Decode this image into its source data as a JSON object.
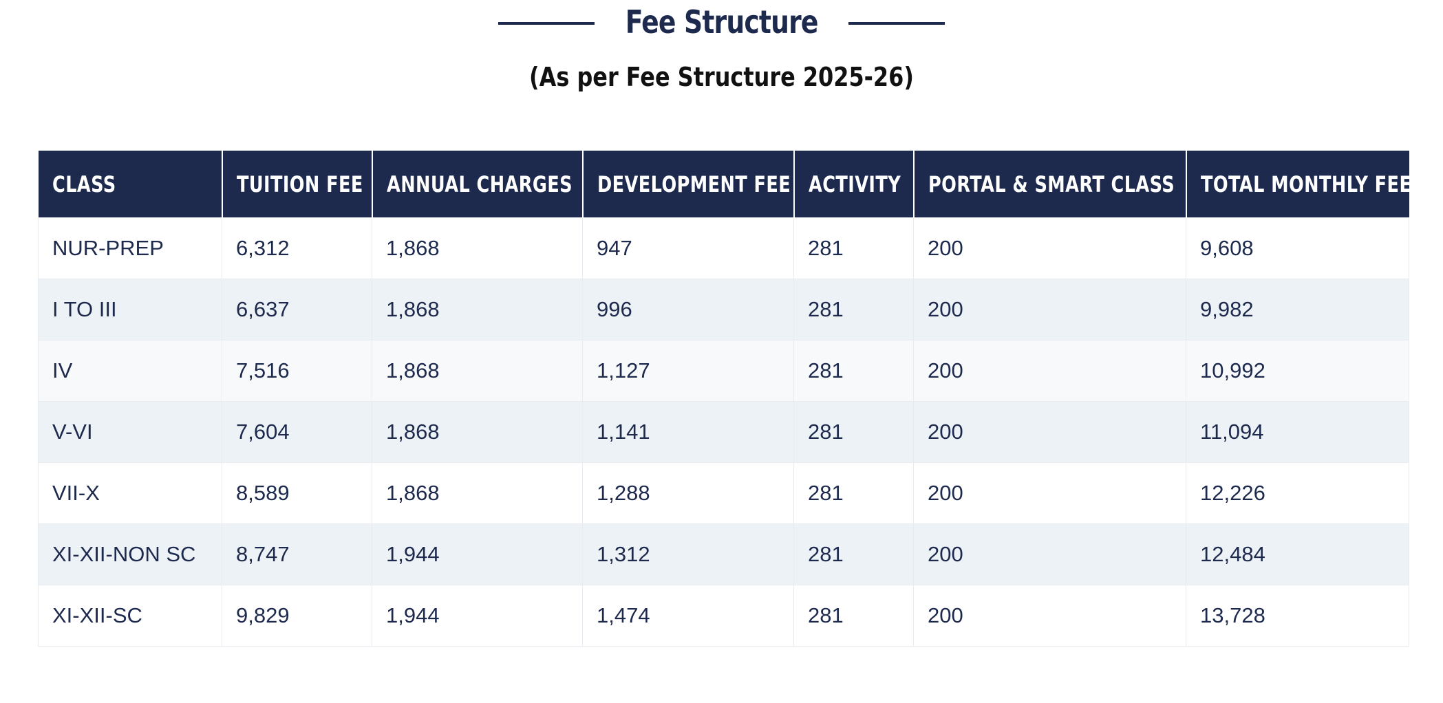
{
  "header": {
    "title": "Fee Structure",
    "subtitle": "(As per Fee Structure 2025-26)"
  },
  "colors": {
    "navy": "#1d2a4d",
    "row_alt": "#edf2f6",
    "row_light": "#f8f9fa",
    "white": "#ffffff"
  },
  "table": {
    "columns": [
      "CLASS",
      "TUITION FEE",
      "ANNUAL CHARGES",
      "DEVELOPMENT FEE",
      "ACTIVITY",
      "PORTAL & SMART CLASS",
      "TOTAL MONTHLY FEE"
    ],
    "rows": [
      [
        "NUR-PREP",
        "6,312",
        "1,868",
        "947",
        "281",
        "200",
        "9,608"
      ],
      [
        "I TO III",
        "6,637",
        "1,868",
        "996",
        "281",
        "200",
        "9,982"
      ],
      [
        "IV",
        "7,516",
        "1,868",
        "1,127",
        "281",
        "200",
        "10,992"
      ],
      [
        "V-VI",
        "7,604",
        "1,868",
        "1,141",
        "281",
        "200",
        "11,094"
      ],
      [
        "VII-X",
        "8,589",
        "1,868",
        "1,288",
        "281",
        "200",
        "12,226"
      ],
      [
        "XI-XII-NON SC",
        "8,747",
        "1,944",
        "1,312",
        "281",
        "200",
        "12,484"
      ],
      [
        "XI-XII-SC",
        "9,829",
        "1,944",
        "1,474",
        "281",
        "200",
        "13,728"
      ]
    ]
  }
}
